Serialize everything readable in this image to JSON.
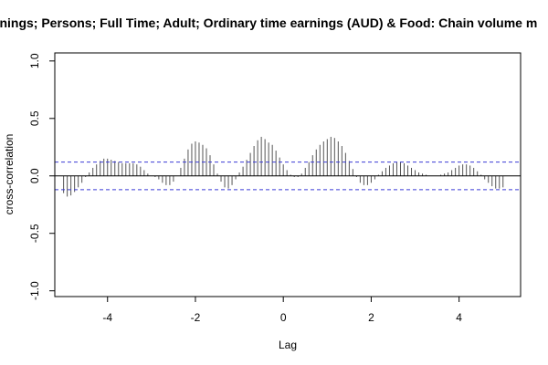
{
  "chart_data": {
    "type": "bar",
    "title": "rnings; Persons; Full Time; Adult; Ordinary time earnings (AUD) & Food: Chain volume m",
    "xlabel": "Lag",
    "ylabel": "cross-correlation",
    "xlim": [
      -5.2,
      5.4
    ],
    "ylim": [
      -1.05,
      1.07
    ],
    "xticks": [
      -4,
      -2,
      0,
      2,
      4
    ],
    "xtick_labels": [
      "-4",
      "-2",
      "0",
      "2",
      "4"
    ],
    "yticks": [
      -1.0,
      -0.5,
      0.0,
      0.5,
      1.0
    ],
    "ytick_labels": [
      "-1.0",
      "-0.5",
      "0.0",
      "0.5",
      "1.0"
    ],
    "confidence_band": [
      0.12,
      -0.12
    ],
    "colors": {
      "bars": "#555555",
      "band": "#3b3bd6",
      "zero_line": "#000000",
      "frame": "#000000"
    },
    "x": [
      -5.0,
      -4.9167,
      -4.8333,
      -4.75,
      -4.6667,
      -4.5833,
      -4.5,
      -4.4167,
      -4.3333,
      -4.25,
      -4.1667,
      -4.0833,
      -4.0,
      -3.9167,
      -3.8333,
      -3.75,
      -3.6667,
      -3.5833,
      -3.5,
      -3.4167,
      -3.3333,
      -3.25,
      -3.1667,
      -3.0833,
      -3.0,
      -2.9167,
      -2.8333,
      -2.75,
      -2.6667,
      -2.5833,
      -2.5,
      -2.4167,
      -2.3333,
      -2.25,
      -2.1667,
      -2.0833,
      -2.0,
      -1.9167,
      -1.8333,
      -1.75,
      -1.6667,
      -1.5833,
      -1.5,
      -1.4167,
      -1.3333,
      -1.25,
      -1.1667,
      -1.0833,
      -1.0,
      -0.9167,
      -0.8333,
      -0.75,
      -0.6667,
      -0.5833,
      -0.5,
      -0.4167,
      -0.3333,
      -0.25,
      -0.1667,
      -0.0833,
      0.0,
      0.0833,
      0.1667,
      0.25,
      0.3333,
      0.4167,
      0.5,
      0.5833,
      0.6667,
      0.75,
      0.8333,
      0.9167,
      1.0,
      1.0833,
      1.1667,
      1.25,
      1.3333,
      1.4167,
      1.5,
      1.5833,
      1.6667,
      1.75,
      1.8333,
      1.9167,
      2.0,
      2.0833,
      2.1667,
      2.25,
      2.3333,
      2.4167,
      2.5,
      2.5833,
      2.6667,
      2.75,
      2.8333,
      2.9167,
      3.0,
      3.0833,
      3.1667,
      3.25,
      3.3333,
      3.4167,
      3.5,
      3.5833,
      3.6667,
      3.75,
      3.8333,
      3.9167,
      4.0,
      4.0833,
      4.1667,
      4.25,
      4.3333,
      4.4167,
      4.5,
      4.5833,
      4.6667,
      4.75,
      4.8333,
      4.9167,
      5.0
    ],
    "values": [
      -0.15,
      -0.18,
      -0.17,
      -0.14,
      -0.1,
      -0.06,
      -0.01,
      0.03,
      0.07,
      0.1,
      0.13,
      0.15,
      0.15,
      0.14,
      0.13,
      0.12,
      0.11,
      0.11,
      0.11,
      0.11,
      0.1,
      0.08,
      0.05,
      0.02,
      0.0,
      -0.01,
      -0.03,
      -0.06,
      -0.08,
      -0.08,
      -0.05,
      0.0,
      0.07,
      0.15,
      0.23,
      0.28,
      0.3,
      0.29,
      0.27,
      0.24,
      0.18,
      0.1,
      0.02,
      -0.05,
      -0.1,
      -0.11,
      -0.08,
      -0.03,
      0.03,
      0.08,
      0.14,
      0.2,
      0.26,
      0.31,
      0.34,
      0.32,
      0.29,
      0.27,
      0.22,
      0.16,
      0.1,
      0.05,
      0.01,
      -0.01,
      -0.01,
      0.02,
      0.07,
      0.12,
      0.18,
      0.23,
      0.27,
      0.3,
      0.32,
      0.34,
      0.33,
      0.3,
      0.26,
      0.2,
      0.13,
      0.06,
      -0.01,
      -0.06,
      -0.08,
      -0.08,
      -0.06,
      -0.03,
      0.01,
      0.04,
      0.07,
      0.09,
      0.11,
      0.12,
      0.12,
      0.11,
      0.09,
      0.07,
      0.05,
      0.03,
      0.02,
      0.01,
      0.0,
      0.0,
      0.0,
      0.01,
      0.02,
      0.03,
      0.05,
      0.07,
      0.09,
      0.1,
      0.1,
      0.09,
      0.07,
      0.04,
      0.01,
      -0.03,
      -0.06,
      -0.09,
      -0.11,
      -0.11,
      -0.1
    ],
    "grid": false,
    "legend": "none"
  }
}
